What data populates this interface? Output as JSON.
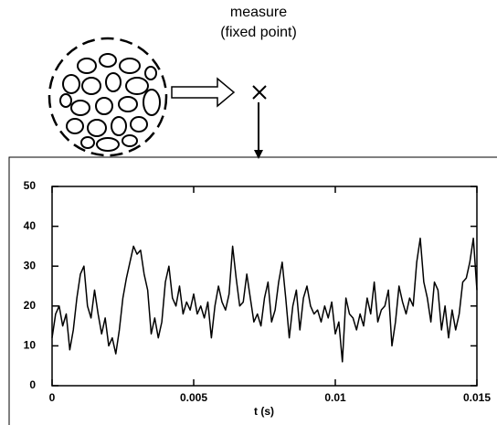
{
  "chart_data": {
    "type": "line",
    "annotations": [
      "measure",
      "(fixed point)"
    ],
    "xlabel": "t (s)",
    "x": [
      0,
      0.000125,
      0.00025,
      0.000375,
      0.0005,
      0.000625,
      0.00075,
      0.000875,
      0.001,
      0.001125,
      0.00125,
      0.001375,
      0.0015,
      0.001625,
      0.00175,
      0.001875,
      0.002,
      0.002125,
      0.00225,
      0.002375,
      0.0025,
      0.002625,
      0.00275,
      0.002875,
      0.003,
      0.003125,
      0.00325,
      0.003375,
      0.0035,
      0.003625,
      0.00375,
      0.003875,
      0.004,
      0.004125,
      0.00425,
      0.004375,
      0.0045,
      0.004625,
      0.00475,
      0.004875,
      0.005,
      0.005125,
      0.00525,
      0.005375,
      0.0055,
      0.005625,
      0.00575,
      0.005875,
      0.006,
      0.006125,
      0.00625,
      0.006375,
      0.0065,
      0.006625,
      0.00675,
      0.006875,
      0.007,
      0.007125,
      0.00725,
      0.007375,
      0.0075,
      0.007625,
      0.00775,
      0.007875,
      0.008,
      0.008125,
      0.00825,
      0.008375,
      0.0085,
      0.008625,
      0.00875,
      0.008875,
      0.009,
      0.009125,
      0.00925,
      0.009375,
      0.0095,
      0.009625,
      0.00975,
      0.009875,
      0.01,
      0.010125,
      0.01025,
      0.010375,
      0.0105,
      0.010625,
      0.01075,
      0.010875,
      0.011,
      0.011125,
      0.01125,
      0.011375,
      0.0115,
      0.011625,
      0.01175,
      0.011875,
      0.012,
      0.012125,
      0.01225,
      0.012375,
      0.0125,
      0.012625,
      0.01275,
      0.012875,
      0.013,
      0.013125,
      0.01325,
      0.013375,
      0.0135,
      0.013625,
      0.01375,
      0.013875,
      0.014,
      0.014125,
      0.01425,
      0.014375,
      0.0145,
      0.014625,
      0.01475,
      0.014875,
      0.015
    ],
    "values": [
      12,
      18,
      20,
      15,
      18,
      9,
      14,
      22,
      28,
      30,
      20,
      17,
      24,
      18,
      13,
      17,
      10,
      12,
      8,
      14,
      22,
      27,
      31,
      35,
      33,
      34,
      28,
      24,
      13,
      17,
      12,
      16,
      26,
      30,
      22,
      20,
      25,
      18,
      21,
      19,
      23,
      18,
      20,
      17,
      21,
      12,
      20,
      25,
      21,
      19,
      23,
      35,
      27,
      20,
      21,
      28,
      22,
      16,
      18,
      15,
      22,
      26,
      16,
      19,
      26,
      31,
      22,
      12,
      20,
      24,
      14,
      22,
      25,
      20,
      18,
      19,
      16,
      20,
      17,
      21,
      13,
      16,
      6,
      22,
      18,
      17,
      14,
      18,
      15,
      22,
      18,
      26,
      16,
      19,
      20,
      24,
      10,
      16,
      25,
      21,
      18,
      22,
      20,
      31,
      37,
      26,
      22,
      16,
      26,
      24,
      14,
      20,
      12,
      19,
      14,
      18,
      26,
      27,
      31,
      37,
      24
    ],
    "color": "#000000",
    "xlim": [
      0,
      0.015
    ],
    "xticks": [
      0,
      0.005,
      0.01,
      0.015
    ],
    "ylim": [
      0,
      50
    ],
    "yticks": [
      0,
      10,
      20,
      30,
      40,
      50
    ]
  }
}
